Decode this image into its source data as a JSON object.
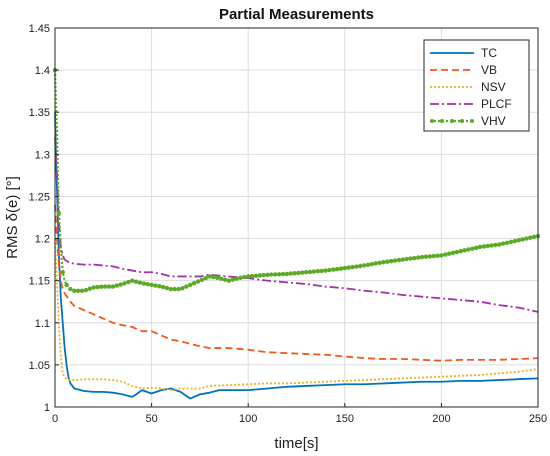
{
  "chart_data": {
    "type": "line",
    "title": "Partial Measurements",
    "xlabel": "time[s]",
    "ylabel": "RMS δ(e) [°]",
    "xlim": [
      0,
      250
    ],
    "ylim": [
      1.0,
      1.45
    ],
    "xticks": [
      "0",
      "50",
      "100",
      "150",
      "200",
      "250"
    ],
    "yticks": [
      "1",
      "1.05",
      "1.1",
      "1.15",
      "1.2",
      "1.25",
      "1.3",
      "1.35",
      "1.4",
      "1.45"
    ],
    "grid": true,
    "legend_position": "top-right",
    "series": [
      {
        "name": "TC",
        "color": "#0072bd",
        "style": "solid",
        "points": [
          [
            0,
            1.35
          ],
          [
            0.5,
            1.3
          ],
          [
            1,
            1.26
          ],
          [
            1.5,
            1.22
          ],
          [
            2,
            1.18
          ],
          [
            3,
            1.13
          ],
          [
            4,
            1.1
          ],
          [
            5,
            1.07
          ],
          [
            6,
            1.05
          ],
          [
            7,
            1.035
          ],
          [
            8,
            1.028
          ],
          [
            10,
            1.022
          ],
          [
            15,
            1.019
          ],
          [
            20,
            1.018
          ],
          [
            25,
            1.018
          ],
          [
            30,
            1.017
          ],
          [
            35,
            1.015
          ],
          [
            40,
            1.012
          ],
          [
            42,
            1.015
          ],
          [
            45,
            1.02
          ],
          [
            50,
            1.016
          ],
          [
            55,
            1.02
          ],
          [
            60,
            1.022
          ],
          [
            65,
            1.018
          ],
          [
            70,
            1.01
          ],
          [
            75,
            1.015
          ],
          [
            80,
            1.017
          ],
          [
            85,
            1.02
          ],
          [
            90,
            1.02
          ],
          [
            100,
            1.02
          ],
          [
            110,
            1.022
          ],
          [
            120,
            1.024
          ],
          [
            130,
            1.025
          ],
          [
            140,
            1.026
          ],
          [
            150,
            1.027
          ],
          [
            160,
            1.027
          ],
          [
            170,
            1.028
          ],
          [
            180,
            1.029
          ],
          [
            190,
            1.03
          ],
          [
            200,
            1.03
          ],
          [
            210,
            1.031
          ],
          [
            220,
            1.031
          ],
          [
            230,
            1.032
          ],
          [
            240,
            1.033
          ],
          [
            250,
            1.034
          ]
        ]
      },
      {
        "name": "VB",
        "color": "#f2571a",
        "style": "dashed",
        "points": [
          [
            0,
            1.24
          ],
          [
            1,
            1.2
          ],
          [
            2,
            1.17
          ],
          [
            3,
            1.15
          ],
          [
            4,
            1.14
          ],
          [
            5,
            1.135
          ],
          [
            8,
            1.125
          ],
          [
            10,
            1.12
          ],
          [
            15,
            1.115
          ],
          [
            20,
            1.11
          ],
          [
            25,
            1.105
          ],
          [
            30,
            1.1
          ],
          [
            35,
            1.097
          ],
          [
            40,
            1.095
          ],
          [
            45,
            1.09
          ],
          [
            50,
            1.09
          ],
          [
            55,
            1.085
          ],
          [
            60,
            1.08
          ],
          [
            65,
            1.078
          ],
          [
            70,
            1.075
          ],
          [
            75,
            1.072
          ],
          [
            80,
            1.07
          ],
          [
            90,
            1.07
          ],
          [
            100,
            1.068
          ],
          [
            110,
            1.065
          ],
          [
            120,
            1.064
          ],
          [
            130,
            1.063
          ],
          [
            140,
            1.062
          ],
          [
            150,
            1.06
          ],
          [
            160,
            1.058
          ],
          [
            170,
            1.057
          ],
          [
            180,
            1.057
          ],
          [
            190,
            1.056
          ],
          [
            200,
            1.055
          ],
          [
            210,
            1.056
          ],
          [
            220,
            1.056
          ],
          [
            230,
            1.056
          ],
          [
            240,
            1.057
          ],
          [
            250,
            1.058
          ]
        ]
      },
      {
        "name": "NSV",
        "color": "#edb120",
        "style": "dotted",
        "points": [
          [
            0,
            1.2
          ],
          [
            1,
            1.15
          ],
          [
            2,
            1.1
          ],
          [
            3,
            1.06
          ],
          [
            4,
            1.04
          ],
          [
            5,
            1.035
          ],
          [
            7,
            1.032
          ],
          [
            10,
            1.032
          ],
          [
            15,
            1.033
          ],
          [
            20,
            1.033
          ],
          [
            25,
            1.033
          ],
          [
            30,
            1.032
          ],
          [
            35,
            1.03
          ],
          [
            40,
            1.025
          ],
          [
            45,
            1.022
          ],
          [
            50,
            1.023
          ],
          [
            55,
            1.022
          ],
          [
            60,
            1.02
          ],
          [
            65,
            1.022
          ],
          [
            70,
            1.022
          ],
          [
            75,
            1.022
          ],
          [
            80,
            1.025
          ],
          [
            90,
            1.026
          ],
          [
            100,
            1.027
          ],
          [
            110,
            1.028
          ],
          [
            120,
            1.028
          ],
          [
            130,
            1.029
          ],
          [
            140,
            1.03
          ],
          [
            150,
            1.031
          ],
          [
            160,
            1.032
          ],
          [
            170,
            1.033
          ],
          [
            180,
            1.034
          ],
          [
            190,
            1.035
          ],
          [
            200,
            1.036
          ],
          [
            210,
            1.037
          ],
          [
            220,
            1.038
          ],
          [
            230,
            1.04
          ],
          [
            240,
            1.042
          ],
          [
            250,
            1.045
          ]
        ]
      },
      {
        "name": "PLCF",
        "color": "#a031a8",
        "style": "dashdot",
        "points": [
          [
            0,
            1.32
          ],
          [
            1,
            1.28
          ],
          [
            2,
            1.22
          ],
          [
            3,
            1.19
          ],
          [
            4,
            1.18
          ],
          [
            5,
            1.175
          ],
          [
            7,
            1.172
          ],
          [
            10,
            1.17
          ],
          [
            15,
            1.169
          ],
          [
            20,
            1.169
          ],
          [
            25,
            1.168
          ],
          [
            30,
            1.167
          ],
          [
            35,
            1.164
          ],
          [
            40,
            1.162
          ],
          [
            45,
            1.16
          ],
          [
            50,
            1.16
          ],
          [
            55,
            1.158
          ],
          [
            60,
            1.155
          ],
          [
            65,
            1.155
          ],
          [
            70,
            1.155
          ],
          [
            75,
            1.155
          ],
          [
            80,
            1.157
          ],
          [
            90,
            1.155
          ],
          [
            100,
            1.153
          ],
          [
            110,
            1.15
          ],
          [
            120,
            1.148
          ],
          [
            130,
            1.146
          ],
          [
            140,
            1.143
          ],
          [
            150,
            1.141
          ],
          [
            160,
            1.138
          ],
          [
            170,
            1.136
          ],
          [
            180,
            1.133
          ],
          [
            190,
            1.131
          ],
          [
            200,
            1.129
          ],
          [
            210,
            1.127
          ],
          [
            220,
            1.125
          ],
          [
            230,
            1.121
          ],
          [
            240,
            1.118
          ],
          [
            250,
            1.113
          ]
        ]
      },
      {
        "name": "VHV",
        "color": "#5aaa25",
        "style": "dotted-marker",
        "points": [
          [
            0,
            1.4
          ],
          [
            0.5,
            1.36
          ],
          [
            1,
            1.33
          ],
          [
            1.5,
            1.27
          ],
          [
            2,
            1.23
          ],
          [
            3,
            1.19
          ],
          [
            4,
            1.16
          ],
          [
            5,
            1.15
          ],
          [
            6,
            1.145
          ],
          [
            8,
            1.14
          ],
          [
            10,
            1.138
          ],
          [
            15,
            1.138
          ],
          [
            20,
            1.142
          ],
          [
            25,
            1.143
          ],
          [
            30,
            1.143
          ],
          [
            35,
            1.146
          ],
          [
            40,
            1.15
          ],
          [
            45,
            1.147
          ],
          [
            50,
            1.145
          ],
          [
            55,
            1.143
          ],
          [
            60,
            1.14
          ],
          [
            65,
            1.14
          ],
          [
            70,
            1.145
          ],
          [
            75,
            1.15
          ],
          [
            80,
            1.155
          ],
          [
            85,
            1.153
          ],
          [
            90,
            1.15
          ],
          [
            95,
            1.153
          ],
          [
            100,
            1.155
          ],
          [
            110,
            1.157
          ],
          [
            120,
            1.158
          ],
          [
            130,
            1.16
          ],
          [
            140,
            1.162
          ],
          [
            150,
            1.165
          ],
          [
            160,
            1.168
          ],
          [
            170,
            1.172
          ],
          [
            180,
            1.175
          ],
          [
            190,
            1.178
          ],
          [
            200,
            1.18
          ],
          [
            210,
            1.185
          ],
          [
            220,
            1.19
          ],
          [
            230,
            1.193
          ],
          [
            240,
            1.198
          ],
          [
            250,
            1.203
          ]
        ]
      }
    ]
  }
}
